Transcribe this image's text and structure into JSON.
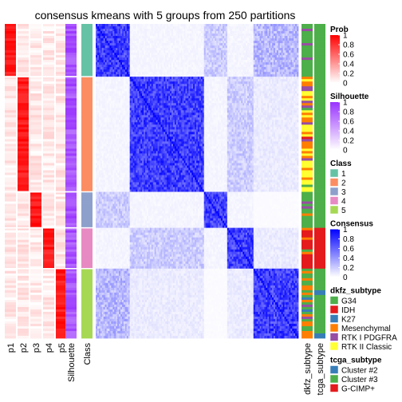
{
  "chart_data": {
    "type": "heatmap",
    "title": "consensus kmeans with 5 groups from 250 partitions",
    "column_labels": [
      "p1",
      "p2",
      "p3",
      "p4",
      "p5",
      "Silhouette",
      "Class",
      "dkfz_subtype",
      "tcga_subtype"
    ],
    "group_sizes": [
      22,
      48,
      15,
      17,
      29
    ],
    "group_classes": [
      1,
      2,
      3,
      4,
      5
    ],
    "class_colors": [
      "#66C2A5",
      "#FC8D62",
      "#8DA0CB",
      "#E78AC3",
      "#A6D854"
    ],
    "prob_color_scale": [
      "#FFFFFF",
      "#FF0000"
    ],
    "silhouette_color_scale": [
      "#FFFFFF",
      "#9933FF"
    ],
    "consensus_color_scale": [
      "#FFFFFF",
      "#0000FF"
    ],
    "legends": [
      {
        "title": "Prob",
        "type": "continuous",
        "ticks": [
          "1",
          "0.8",
          "0.6",
          "0.4",
          "0.2",
          "0"
        ],
        "colors": [
          "#FF0000",
          "#FFFFFF"
        ]
      },
      {
        "title": "Silhouette",
        "type": "continuous",
        "ticks": [
          "1",
          "0.8",
          "0.6",
          "0.4",
          "0.2",
          "0"
        ],
        "colors": [
          "#9933FF",
          "#FFFFFF"
        ]
      },
      {
        "title": "Class",
        "type": "discrete",
        "items": [
          {
            "label": "1",
            "color": "#66C2A5"
          },
          {
            "label": "2",
            "color": "#FC8D62"
          },
          {
            "label": "3",
            "color": "#8DA0CB"
          },
          {
            "label": "4",
            "color": "#E78AC3"
          },
          {
            "label": "5",
            "color": "#A6D854"
          }
        ]
      },
      {
        "title": "Consensus",
        "type": "continuous",
        "ticks": [
          "1",
          "0.8",
          "0.6",
          "0.4",
          "0.2",
          "0"
        ],
        "colors": [
          "#0000FF",
          "#FFFFFF"
        ]
      },
      {
        "title": "dkfz_subtype",
        "type": "discrete",
        "items": [
          {
            "label": "G34",
            "color": "#4DAF4A"
          },
          {
            "label": "IDH",
            "color": "#E41A1C"
          },
          {
            "label": "K27",
            "color": "#377EB8"
          },
          {
            "label": "Mesenchymal",
            "color": "#FF7F00"
          },
          {
            "label": "RTK I PDGFRA",
            "color": "#984EA3"
          },
          {
            "label": "RTK II Classic",
            "color": "#FFFF33"
          }
        ]
      },
      {
        "title": "tcga_subtype",
        "type": "discrete",
        "items": [
          {
            "label": "Cluster #2",
            "color": "#377EB8"
          },
          {
            "label": "Cluster #3",
            "color": "#4DAF4A"
          },
          {
            "label": "G-CIMP+",
            "color": "#E41A1C"
          }
        ]
      }
    ]
  }
}
